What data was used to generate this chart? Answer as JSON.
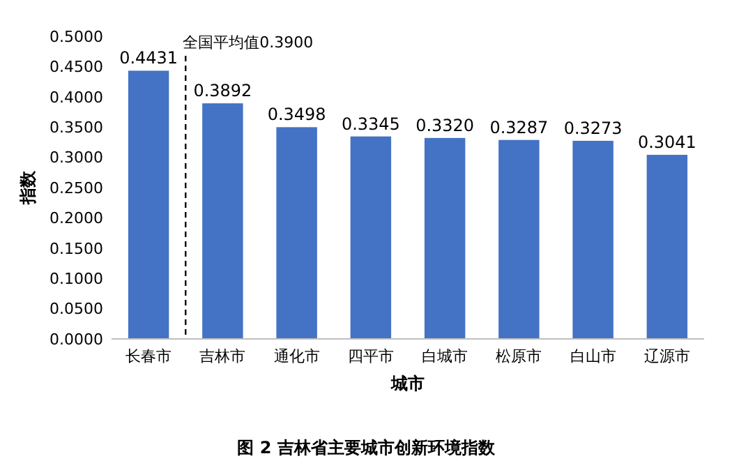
{
  "chart_data": {
    "type": "bar",
    "title": "图 2 吉林省主要城市创新环境指数",
    "xlabel": "城市",
    "ylabel": "指数",
    "categories": [
      "长春市",
      "吉林市",
      "通化市",
      "四平市",
      "白城市",
      "松原市",
      "白山市",
      "辽源市"
    ],
    "values": [
      0.4431,
      0.3892,
      0.3498,
      0.3345,
      0.332,
      0.3287,
      0.3273,
      0.3041
    ],
    "value_labels": [
      "0.4431",
      "0.3892",
      "0.3498",
      "0.3345",
      "0.3320",
      "0.3287",
      "0.3273",
      "0.3041"
    ],
    "color": "#4472c4",
    "ylim": [
      0,
      0.5
    ],
    "yticks": [
      {
        "value": 0,
        "label": "0.0000"
      },
      {
        "value": 0.05,
        "label": "0.0500"
      },
      {
        "value": 0.1,
        "label": "0.1000"
      },
      {
        "value": 0.15,
        "label": "0.1500"
      },
      {
        "value": 0.2,
        "label": "0.2000"
      },
      {
        "value": 0.25,
        "label": "0.2500"
      },
      {
        "value": 0.3,
        "label": "0.3000"
      },
      {
        "value": 0.35,
        "label": "0.3500"
      },
      {
        "value": 0.4,
        "label": "0.4000"
      },
      {
        "value": 0.45,
        "label": "0.4500"
      },
      {
        "value": 0.5,
        "label": "0.5000"
      }
    ],
    "annotations": [
      "全国平均值0.3900"
    ],
    "grid": false
  }
}
